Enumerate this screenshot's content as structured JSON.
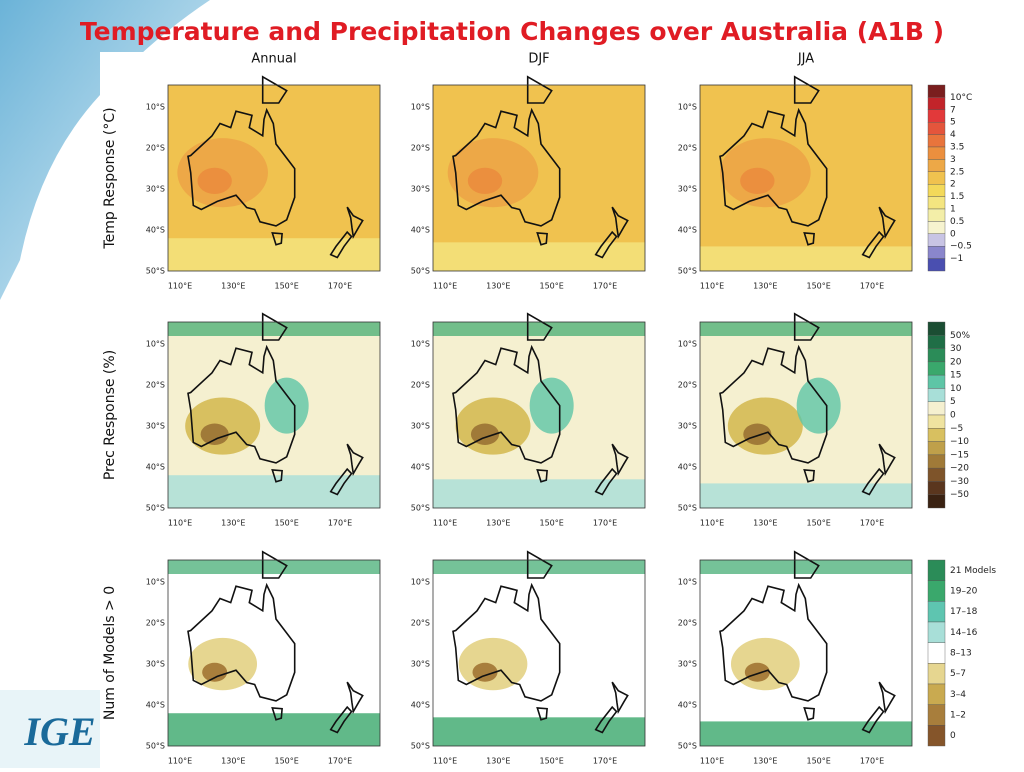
{
  "title": "Temperature and Precipitation Changes over Australia (A1B )",
  "columns": [
    "Annual",
    "DJF",
    "JJA"
  ],
  "lat_ticks": [
    "10°S",
    "20°S",
    "30°S",
    "40°S",
    "50°S"
  ],
  "lon_ticks": [
    "110°E",
    "130°E",
    "150°E",
    "170°E"
  ],
  "rows": [
    {
      "label": "Temp Response (°C)",
      "legend_labels": [
        "10°C",
        "7",
        "5",
        "4",
        "3.5",
        "3",
        "2.5",
        "2",
        "1.5",
        "1",
        "0.5",
        "0",
        "−0.5",
        "−1"
      ],
      "legend_colors": [
        "#7a1e1e",
        "#c2242a",
        "#e2393a",
        "#e4553c",
        "#e8743c",
        "#eb8f3e",
        "#eda847",
        "#f0c24f",
        "#f3d95a",
        "#f4e580",
        "#f3eea8",
        "#f6f3cf",
        "#c8c4e4",
        "#8a86cc",
        "#4a4fb0"
      ]
    },
    {
      "label": "Prec Response (%)",
      "legend_labels": [
        "50%",
        "30",
        "20",
        "15",
        "10",
        "5",
        "0",
        "−5",
        "−10",
        "−15",
        "−20",
        "−30",
        "−50"
      ],
      "legend_colors": [
        "#1b4e33",
        "#1f6e46",
        "#2b8c58",
        "#3aa86c",
        "#5ec5a6",
        "#a8dfd8",
        "#f5f0d0",
        "#efe3a0",
        "#d8c060",
        "#bfa04a",
        "#a07a38",
        "#7e542a",
        "#5a361e",
        "#3a2212"
      ]
    },
    {
      "label": "Num of Models > 0",
      "legend_labels": [
        "21 Models",
        "19–20",
        "17–18",
        "14–16",
        "8–13",
        "5–7",
        "3–4",
        "1–2",
        "0"
      ],
      "legend_colors": [
        "#2b8c58",
        "#3aa86c",
        "#5ec5b0",
        "#a8dfd8",
        "#ffffff",
        "#e6d690",
        "#c9aa50",
        "#a87e3c",
        "#85552a"
      ]
    }
  ],
  "logo": "IGE"
}
